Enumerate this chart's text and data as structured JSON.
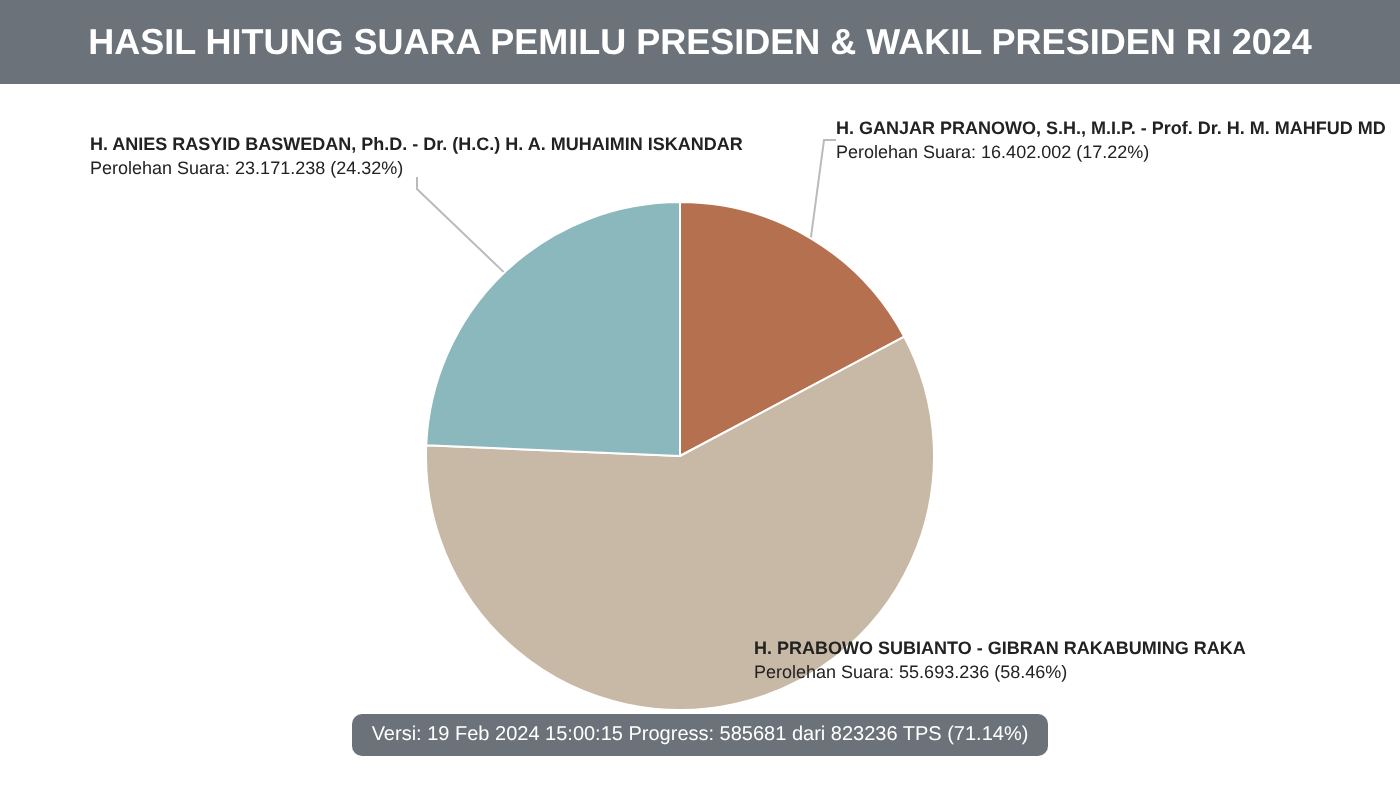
{
  "chart_data": {
    "type": "pie",
    "title": "HASIL HITUNG SUARA PEMILU PRESIDEN & WAKIL PRESIDEN RI 2024",
    "categories": [
      "H. GANJAR PRANOWO, S.H., M.I.P. - Prof. Dr. H. M. MAHFUD MD",
      "H. PRABOWO SUBIANTO - GIBRAN RAKABUMING RAKA",
      "H. ANIES RASYID BASWEDAN, Ph.D. - Dr. (H.C.) H. A. MUHAIMIN ISKANDAR"
    ],
    "values": [
      17.22,
      58.46,
      24.32
    ],
    "colors": [
      "#b5714f",
      "#c8b8a6",
      "#8ab8bd"
    ],
    "value_labels": [
      "Perolehan Suara: 16.402.002 (17.22%)",
      "Perolehan Suara: 55.693.236 (58.46%)",
      "Perolehan Suara: 23.171.238 (24.32%)"
    ],
    "legend": false,
    "annotations": [
      "Versi: 19 Feb 2024 15:00:15 Progress: 585681 dari 823236 TPS (71.14%)"
    ]
  }
}
